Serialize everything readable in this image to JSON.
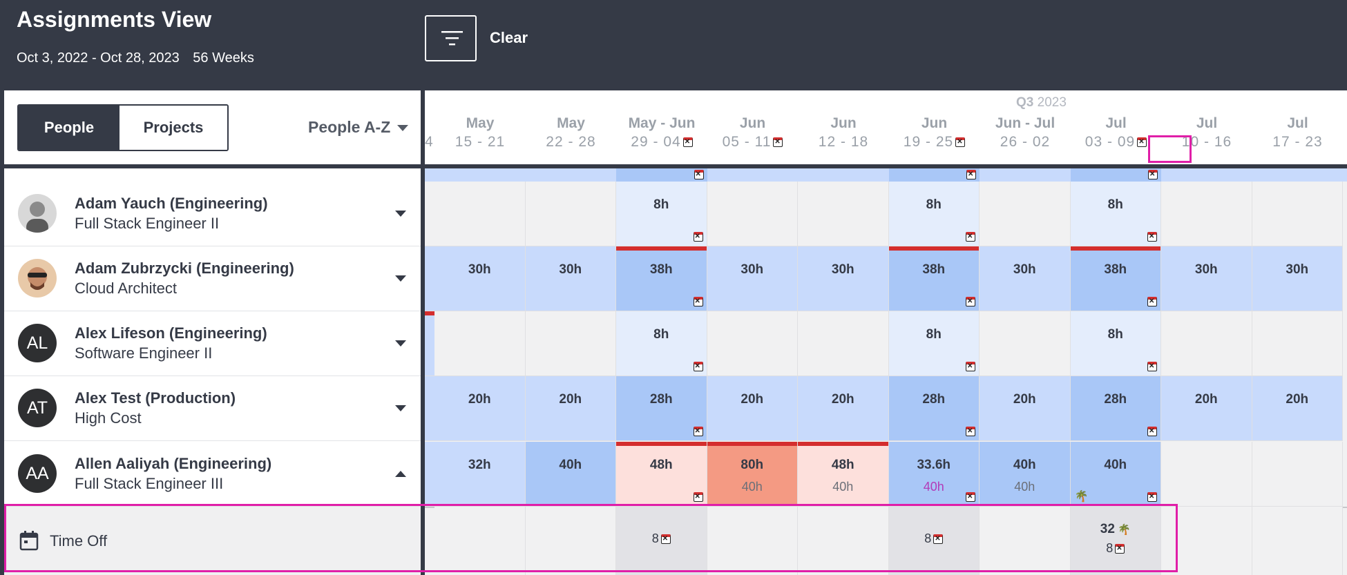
{
  "header": {
    "title": "Assignments View",
    "date_range": "Oct 3, 2022 - Oct 28, 2023",
    "weeks": "56 Weeks",
    "clear_label": "Clear"
  },
  "toolbar": {
    "toggle_people": "People",
    "toggle_projects": "Projects",
    "sort_label": "People A-Z"
  },
  "timeline": {
    "quarter_label": "Q3",
    "quarter_year": "2023",
    "partial_label": "4",
    "weeks": [
      {
        "month": "May",
        "days": "15 - 21",
        "holiday": false
      },
      {
        "month": "May",
        "days": "22 - 28",
        "holiday": false
      },
      {
        "month": "May - Jun",
        "days": "29 - 04",
        "holiday": true
      },
      {
        "month": "Jun",
        "days": "05 - 11",
        "holiday": true
      },
      {
        "month": "Jun",
        "days": "12 - 18",
        "holiday": false
      },
      {
        "month": "Jun",
        "days": "19 - 25",
        "holiday": true
      },
      {
        "month": "Jun - Jul",
        "days": "26 - 02",
        "holiday": false
      },
      {
        "month": "Jul",
        "days": "03 - 09",
        "holiday": true
      },
      {
        "month": "Jul",
        "days": "10 - 16",
        "holiday": false
      },
      {
        "month": "Jul",
        "days": "17 - 23",
        "holiday": false
      }
    ]
  },
  "people": [
    {
      "name": "Adam Yauch (Engineering)",
      "role": "Full Stack Engineer II",
      "initials": "",
      "avatar_kind": "photo-gray",
      "cells": [
        "",
        "",
        "8h",
        "",
        "",
        "8h",
        "",
        "8h",
        "",
        ""
      ]
    },
    {
      "name": "Adam Zubrzycki (Engineering)",
      "role": "Cloud Architect",
      "initials": "",
      "avatar_kind": "photo-color",
      "cells": [
        "30h",
        "30h",
        "38h",
        "30h",
        "30h",
        "38h",
        "30h",
        "38h",
        "30h",
        "30h"
      ]
    },
    {
      "name": "Alex Lifeson (Engineering)",
      "role": "Software Engineer II",
      "initials": "AL",
      "avatar_kind": "initials",
      "cells": [
        "",
        "",
        "8h",
        "",
        "",
        "8h",
        "",
        "8h",
        "",
        ""
      ]
    },
    {
      "name": "Alex Test (Production)",
      "role": "High Cost",
      "initials": "AT",
      "avatar_kind": "initials",
      "cells": [
        "20h",
        "20h",
        "28h",
        "20h",
        "20h",
        "28h",
        "20h",
        "28h",
        "20h",
        "20h"
      ]
    },
    {
      "name": "Allen Aaliyah (Engineering)",
      "role": "Full Stack Engineer III",
      "initials": "AA",
      "avatar_kind": "initials",
      "cells": [
        "32h",
        "40h",
        "48h",
        "80h",
        "48h",
        "33.6h",
        "40h",
        "40h",
        "",
        ""
      ],
      "subs": [
        "",
        "",
        "",
        "40h",
        "40h",
        "40h",
        "40h",
        "",
        "",
        ""
      ]
    }
  ],
  "time_off": {
    "label": "Time Off",
    "values": [
      "",
      "",
      "8",
      "",
      "",
      "8",
      "",
      "8",
      "",
      ""
    ],
    "extra": "32"
  },
  "colors": {
    "header_bg": "#353a46",
    "alloc_light": "#e4edfc",
    "alloc_mid": "#c8dafc",
    "alloc_strong": "#a9c7f7",
    "over_light": "#fde0dc",
    "over_strong": "#f49a83",
    "overbook_bar": "#d42e2e",
    "highlight": "#e01ea8"
  }
}
